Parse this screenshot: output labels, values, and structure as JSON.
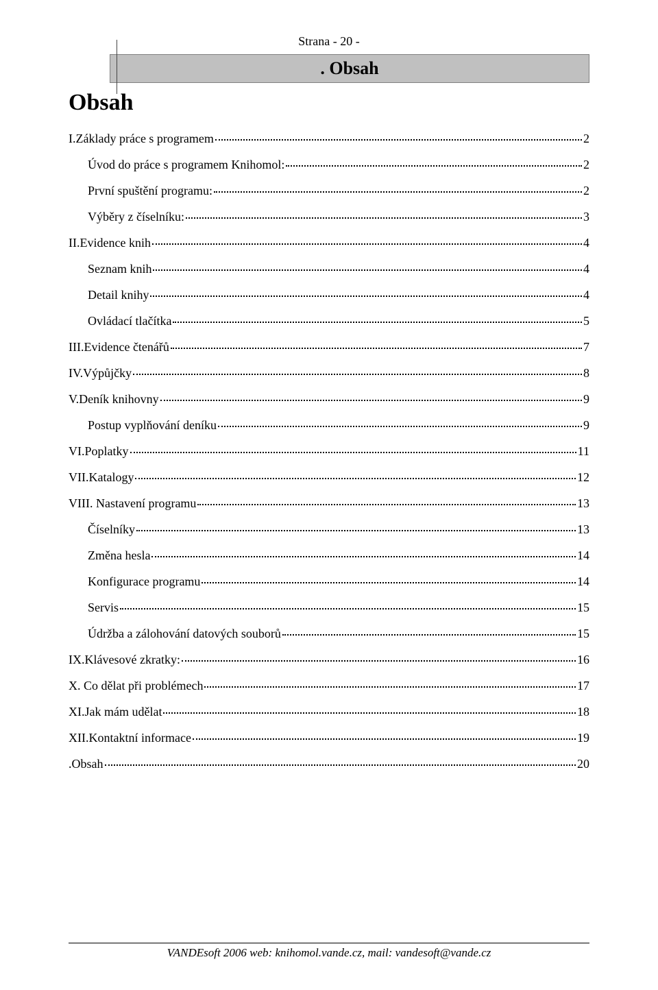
{
  "header": {
    "page_label": "Strana  - 20 -"
  },
  "banner": {
    "title": ". Obsah"
  },
  "title": "Obsah",
  "toc": [
    {
      "label": "I.Základy práce s programem",
      "page": "2",
      "indent": 0
    },
    {
      "label": "Úvod do práce s programem Knihomol:",
      "page": "2",
      "indent": 1
    },
    {
      "label": "První spuštění programu:",
      "page": "2",
      "indent": 1
    },
    {
      "label": "Výběry z číselníku:",
      "page": "3",
      "indent": 1
    },
    {
      "label": "II.Evidence knih",
      "page": "4",
      "indent": 0
    },
    {
      "label": "Seznam knih",
      "page": "4",
      "indent": 1
    },
    {
      "label": "Detail knihy",
      "page": "4",
      "indent": 1
    },
    {
      "label": "Ovládací tlačítka",
      "page": "5",
      "indent": 1
    },
    {
      "label": "III.Evidence čtenářů",
      "page": "7",
      "indent": 0
    },
    {
      "label": "IV.Výpůjčky",
      "page": "8",
      "indent": 0
    },
    {
      "label": "V.Deník knihovny",
      "page": "9",
      "indent": 0
    },
    {
      "label": "Postup vyplňování deníku",
      "page": "9",
      "indent": 1
    },
    {
      "label": "VI.Poplatky",
      "page": "11",
      "indent": 0
    },
    {
      "label": "VII.Katalogy",
      "page": "12",
      "indent": 0
    },
    {
      "label": "VIII. Nastavení programu",
      "page": "13",
      "indent": 0
    },
    {
      "label": "Číselníky",
      "page": "13",
      "indent": 1
    },
    {
      "label": "Změna hesla",
      "page": "14",
      "indent": 1
    },
    {
      "label": "Konfigurace programu",
      "page": "14",
      "indent": 1
    },
    {
      "label": "Servis",
      "page": "15",
      "indent": 1
    },
    {
      "label": "Údržba a zálohování datových souborů",
      "page": "15",
      "indent": 1
    },
    {
      "label": "IX.Klávesové zkratky:",
      "page": "16",
      "indent": 0
    },
    {
      "label": "X. Co dělat při problémech",
      "page": "17",
      "indent": 0
    },
    {
      "label": "XI.Jak mám udělat",
      "page": "18",
      "indent": 0
    },
    {
      "label": "XII.Kontaktní informace",
      "page": "19",
      "indent": 0
    },
    {
      "label": ".Obsah",
      "page": "20",
      "indent": 0
    }
  ],
  "footer": {
    "text": "VANDEsoft 2006 web: knihomol.vande.cz,  mail: vandesoft@vande.cz"
  },
  "colors": {
    "banner_bg": "#c0c0c0",
    "banner_border": "#808080",
    "text": "#000000",
    "background": "#ffffff"
  },
  "typography": {
    "body_font": "Times New Roman",
    "body_size_pt": 14,
    "title_size_pt": 26,
    "banner_size_pt": 20
  }
}
